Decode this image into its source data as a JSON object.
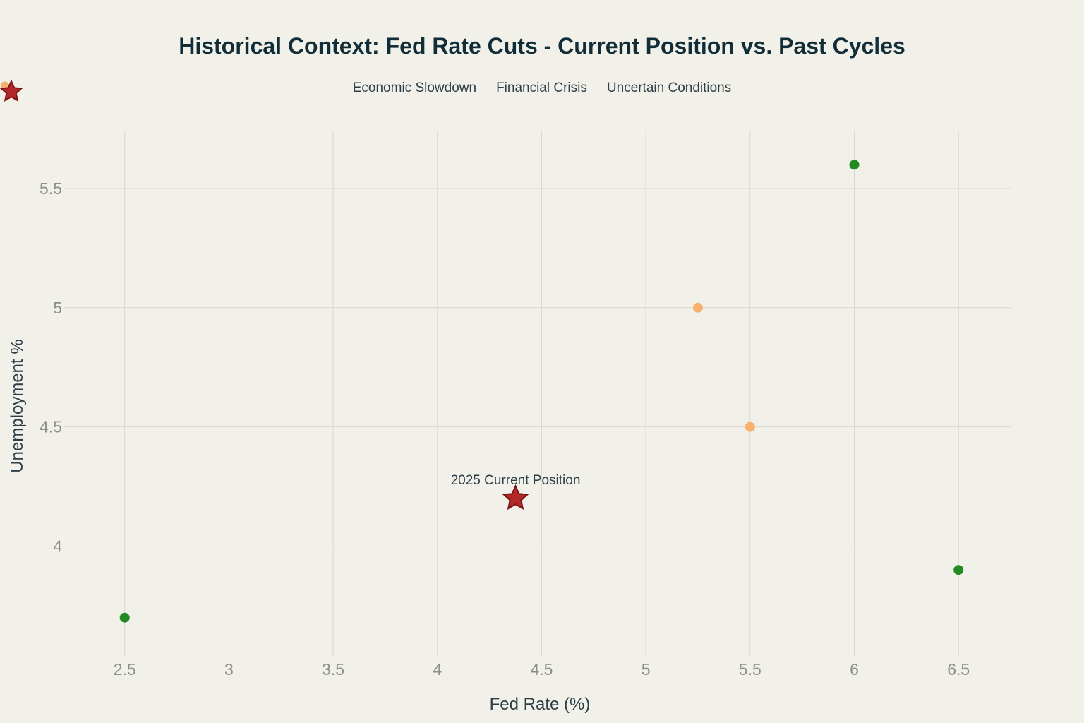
{
  "chart_data": {
    "type": "scatter",
    "title": "Historical Context: Fed Rate Cuts - Current Position vs. Past Cycles",
    "xlabel": "Fed Rate (%)",
    "ylabel": "Unemployment %",
    "xlim": [
      2.23,
      6.75
    ],
    "ylim": [
      3.56,
      5.74
    ],
    "x_ticks": [
      2.5,
      3,
      3.5,
      4,
      4.5,
      5,
      5.5,
      6,
      6.5
    ],
    "y_ticks": [
      4,
      4.5,
      5,
      5.5
    ],
    "grid": true,
    "legend_position": "top-center",
    "background_color": "#f1f0e9",
    "gridline_color": "#d8d8d0",
    "series": [
      {
        "name": "Economic Slowdown",
        "marker": "circle",
        "color": "#1f8b22",
        "size": 14,
        "points": [
          {
            "x": 2.5,
            "y": 3.7
          },
          {
            "x": 6,
            "y": 5.6
          },
          {
            "x": 6.5,
            "y": 3.9
          }
        ]
      },
      {
        "name": "Financial Crisis",
        "marker": "circle",
        "color": "#f9b06c",
        "size": 14,
        "points": [
          {
            "x": 5.25,
            "y": 5
          },
          {
            "x": 5.5,
            "y": 4.5
          }
        ]
      },
      {
        "name": "Uncertain Conditions",
        "marker": "star",
        "color": "#b22727",
        "stroke_color": "#7d1414",
        "size": 35,
        "points": [
          {
            "x": 4.375,
            "y": 4.2
          }
        ]
      }
    ],
    "annotation": {
      "text": "2025 Current Position",
      "x": 4.375,
      "y": 4.2
    }
  }
}
